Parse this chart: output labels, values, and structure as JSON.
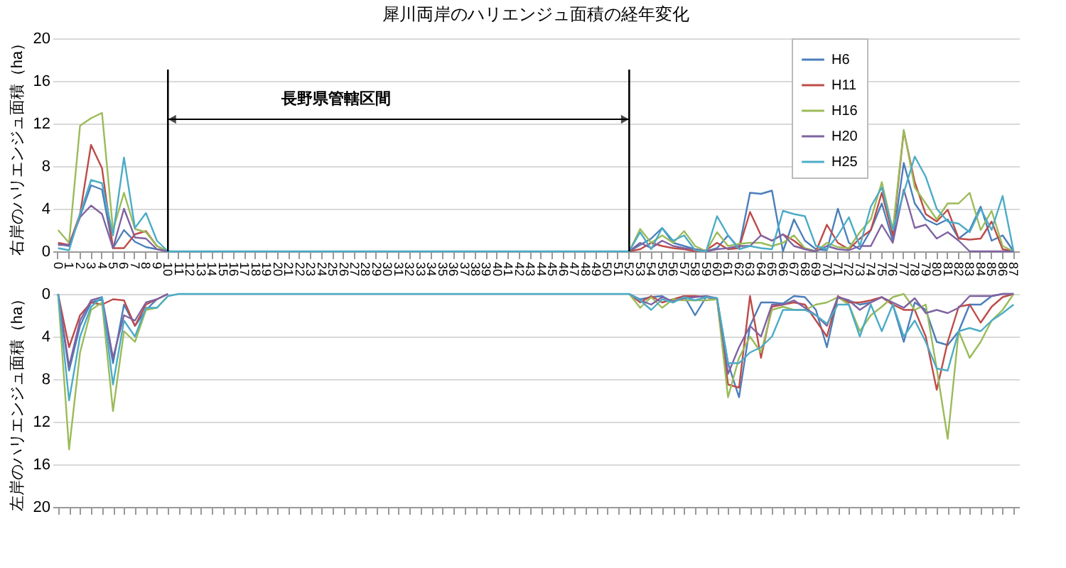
{
  "chart_data": [
    {
      "type": "line",
      "title": "犀川両岸のハリエンジュ面積の経年変化",
      "ylabel": "右岸のハリエンジュ面積（ha）",
      "categories": [
        "0",
        "1",
        "2",
        "3",
        "4",
        "5",
        "6",
        "7",
        "8",
        "9",
        "10",
        "11",
        "12",
        "13",
        "14",
        "15",
        "16",
        "17",
        "18",
        "19",
        "20",
        "21",
        "22",
        "23",
        "24",
        "25",
        "26",
        "27",
        "28",
        "29",
        "30",
        "31",
        "32",
        "33",
        "34",
        "35",
        "36",
        "37",
        "38",
        "39",
        "40",
        "41",
        "42",
        "43",
        "44",
        "45",
        "46",
        "47",
        "48",
        "49",
        "50",
        "51",
        "52",
        "53",
        "54",
        "55",
        "56",
        "57",
        "58",
        "59",
        "60",
        "61",
        "62",
        "63",
        "64",
        "65",
        "66",
        "67",
        "68",
        "69",
        "70",
        "71",
        "72",
        "73",
        "74",
        "75",
        "76",
        "77",
        "78",
        "79",
        "80",
        "81",
        "82",
        "83",
        "84",
        "85",
        "86",
        "87"
      ],
      "ylim": [
        0,
        20
      ],
      "yticks": [
        0,
        4,
        8,
        12,
        16,
        20
      ],
      "grid": "y",
      "legend": "top right",
      "ref_lines": [
        {
          "axis": "x",
          "value": "10"
        },
        {
          "axis": "x",
          "value": "52"
        }
      ],
      "annotations": [
        "長野県管轄区間"
      ],
      "series": [
        {
          "name": "H6",
          "color": "#4a7ebb",
          "values": [
            0.7,
            0.5,
            3.3,
            6.2,
            5.8,
            0.3,
            2.0,
            0.9,
            0.4,
            0.2,
            0,
            null,
            null,
            null,
            null,
            null,
            null,
            null,
            null,
            null,
            null,
            null,
            null,
            null,
            null,
            null,
            null,
            null,
            null,
            null,
            null,
            null,
            null,
            null,
            null,
            null,
            null,
            null,
            null,
            null,
            null,
            null,
            null,
            null,
            null,
            null,
            null,
            null,
            null,
            null,
            null,
            null,
            0,
            0.6,
            1.2,
            2.2,
            0.8,
            0.5,
            0.2,
            0,
            0.3,
            1.5,
            0.3,
            5.5,
            5.4,
            5.7,
            0,
            3.0,
            1.0,
            0.2,
            0.1,
            4.0,
            0.8,
            0.2,
            2.0,
            4.5,
            1.0,
            8.3,
            4.5,
            3.0,
            2.5,
            3.0,
            1.2,
            2.0,
            4.2,
            1.0,
            1.5,
            0
          ]
        },
        {
          "name": "H11",
          "color": "#be4b48",
          "values": [
            0.8,
            0.6,
            3.5,
            10.0,
            7.8,
            0.3,
            0.3,
            1.6,
            1.9,
            0.5,
            0,
            null,
            null,
            null,
            null,
            null,
            null,
            null,
            null,
            null,
            null,
            null,
            null,
            null,
            null,
            null,
            null,
            null,
            null,
            null,
            null,
            null,
            null,
            null,
            null,
            null,
            null,
            null,
            null,
            null,
            null,
            null,
            null,
            null,
            null,
            null,
            null,
            null,
            null,
            null,
            null,
            null,
            0,
            0.2,
            0.8,
            0.5,
            0.3,
            0.2,
            0,
            0.1,
            0.8,
            0.2,
            0.3,
            3.7,
            1.5,
            1.0,
            1.6,
            1.0,
            0.2,
            0,
            2.5,
            0.8,
            0.2,
            1.2,
            2.0,
            5.5,
            1.5,
            11.3,
            6.5,
            3.5,
            2.8,
            3.9,
            1.2,
            1.1,
            1.2,
            2.8,
            0.2,
            0
          ]
        },
        {
          "name": "H16",
          "color": "#9bbb59",
          "values": [
            2.0,
            0.8,
            11.8,
            12.5,
            13.0,
            2.0,
            5.5,
            2.1,
            1.8,
            0.5,
            0,
            null,
            null,
            null,
            null,
            null,
            null,
            null,
            null,
            null,
            null,
            null,
            null,
            null,
            null,
            null,
            null,
            null,
            null,
            null,
            null,
            null,
            null,
            null,
            null,
            null,
            null,
            null,
            null,
            null,
            null,
            null,
            null,
            null,
            null,
            null,
            null,
            null,
            null,
            null,
            null,
            null,
            0,
            2.1,
            0.8,
            1.5,
            0.8,
            1.9,
            0.5,
            0,
            1.8,
            0.5,
            0.7,
            0.8,
            0.8,
            0.5,
            0.8,
            1.5,
            0.3,
            0,
            0.8,
            0.4,
            0.3,
            1.8,
            3.0,
            6.5,
            2.0,
            11.4,
            6.0,
            4.5,
            3.0,
            4.5,
            4.5,
            5.5,
            2.0,
            3.8,
            0.5,
            0
          ]
        },
        {
          "name": "H20",
          "color": "#7f63a1",
          "values": [
            0.6,
            0.6,
            3.2,
            4.3,
            3.5,
            0.3,
            4.0,
            1.3,
            1.2,
            0.2,
            0,
            null,
            null,
            null,
            null,
            null,
            null,
            null,
            null,
            null,
            null,
            null,
            null,
            null,
            null,
            null,
            null,
            null,
            null,
            null,
            null,
            null,
            null,
            null,
            null,
            null,
            null,
            null,
            null,
            null,
            null,
            null,
            null,
            null,
            null,
            null,
            null,
            null,
            null,
            null,
            null,
            null,
            0,
            0.8,
            0.3,
            1.0,
            0.5,
            0.3,
            0.2,
            0,
            0.2,
            0.3,
            0.5,
            0.5,
            1.5,
            1.0,
            1.6,
            0.5,
            0.2,
            0,
            0.5,
            0.2,
            0.1,
            0.5,
            0.5,
            2.5,
            0.8,
            5.8,
            2.2,
            2.5,
            1.2,
            1.8,
            1.0,
            0,
            0,
            0,
            0,
            0
          ]
        },
        {
          "name": "H25",
          "color": "#4bacc6",
          "values": [
            0.3,
            0.1,
            3.5,
            6.7,
            6.4,
            1.5,
            8.8,
            2.2,
            3.6,
            1.0,
            0,
            0,
            0,
            0,
            0,
            0,
            0,
            0,
            0,
            0,
            0,
            0,
            0,
            0,
            0,
            0,
            0,
            0,
            0,
            0,
            0,
            0,
            0,
            0,
            0,
            0,
            0,
            0,
            0,
            0,
            0,
            0,
            0,
            0,
            0,
            0,
            0,
            0,
            0,
            0,
            0,
            0,
            0,
            1.8,
            0.2,
            2.2,
            1.0,
            1.5,
            0.1,
            0,
            3.3,
            1.5,
            0.2,
            0.5,
            0.3,
            0.2,
            3.8,
            3.5,
            3.3,
            0.5,
            0.2,
            1.5,
            3.2,
            0.5,
            4.2,
            6.0,
            2.0,
            5.5,
            8.9,
            7.0,
            4.0,
            2.8,
            2.6,
            1.8,
            4.0,
            2.0,
            5.2,
            0
          ]
        }
      ]
    },
    {
      "type": "line",
      "ylabel": "左岸のハリエンジュ面積（ha）",
      "categories": [
        "0",
        "1",
        "2",
        "3",
        "4",
        "5",
        "6",
        "7",
        "8",
        "9",
        "10",
        "11",
        "12",
        "13",
        "14",
        "15",
        "16",
        "17",
        "18",
        "19",
        "20",
        "21",
        "22",
        "23",
        "24",
        "25",
        "26",
        "27",
        "28",
        "29",
        "30",
        "31",
        "32",
        "33",
        "34",
        "35",
        "36",
        "37",
        "38",
        "39",
        "40",
        "41",
        "42",
        "43",
        "44",
        "45",
        "46",
        "47",
        "48",
        "49",
        "50",
        "51",
        "52",
        "53",
        "54",
        "55",
        "56",
        "57",
        "58",
        "59",
        "60",
        "61",
        "62",
        "63",
        "64",
        "65",
        "66",
        "67",
        "68",
        "69",
        "70",
        "71",
        "72",
        "73",
        "74",
        "75",
        "76",
        "77",
        "78",
        "79",
        "80",
        "81",
        "82",
        "83",
        "84",
        "85",
        "86",
        "87"
      ],
      "ylim": [
        20,
        0
      ],
      "yticks": [
        0,
        4,
        8,
        12,
        16,
        20
      ],
      "grid": "y",
      "tick_labels": "y",
      "series": [
        {
          "color": "#4a7ebb",
          "values": [
            0,
            7.2,
            3.0,
            0.8,
            0.5,
            6.5,
            1.0,
            3.0,
            1.5,
            0.5,
            0,
            null,
            null,
            null,
            null,
            null,
            null,
            null,
            null,
            null,
            null,
            null,
            null,
            null,
            null,
            null,
            null,
            null,
            null,
            null,
            null,
            null,
            null,
            null,
            null,
            null,
            null,
            null,
            null,
            null,
            null,
            null,
            null,
            null,
            null,
            null,
            null,
            null,
            null,
            null,
            null,
            null,
            0,
            0.5,
            0.3,
            0.2,
            0.8,
            0.2,
            2.0,
            0.3,
            0.5,
            6.5,
            9.7,
            3.0,
            0.8,
            0.8,
            0.9,
            0.2,
            0.3,
            1.5,
            5.0,
            0.3,
            0.6,
            1.0,
            0.8,
            0.3,
            1.0,
            4.5,
            0.8,
            1.5,
            4.5,
            4.8,
            3.5,
            1.0,
            1.0,
            0.2,
            0,
            0
          ]
        },
        {
          "color": "#be4b48",
          "values": [
            0,
            5.0,
            2.0,
            0.8,
            1.0,
            0.5,
            0.6,
            3.0,
            1.0,
            0.5,
            0,
            null,
            null,
            null,
            null,
            null,
            null,
            null,
            null,
            null,
            null,
            null,
            null,
            null,
            null,
            null,
            null,
            null,
            null,
            null,
            null,
            null,
            null,
            null,
            null,
            null,
            null,
            null,
            null,
            null,
            null,
            null,
            null,
            null,
            null,
            null,
            null,
            null,
            null,
            null,
            null,
            null,
            0,
            0.8,
            0.2,
            0.8,
            0.5,
            0.2,
            0.2,
            0.3,
            0.5,
            8.5,
            8.8,
            0.2,
            6.0,
            1.2,
            1.0,
            0.8,
            1.0,
            2.5,
            4.0,
            0.2,
            0.8,
            0.8,
            0.6,
            0.3,
            1.0,
            1.5,
            1.5,
            4.0,
            9.0,
            4.5,
            1.2,
            1.0,
            2.7,
            1.2,
            0.3,
            0
          ]
        },
        {
          "color": "#9bbb59",
          "values": [
            0,
            14.6,
            5.5,
            1.5,
            0.8,
            11.0,
            3.5,
            4.5,
            1.5,
            1.3,
            0.2,
            null,
            null,
            null,
            null,
            null,
            null,
            null,
            null,
            null,
            null,
            null,
            null,
            null,
            null,
            null,
            null,
            null,
            null,
            null,
            null,
            null,
            null,
            null,
            null,
            null,
            null,
            null,
            null,
            null,
            null,
            null,
            null,
            null,
            null,
            null,
            null,
            null,
            null,
            null,
            null,
            null,
            0,
            1.3,
            0.3,
            1.3,
            0.5,
            0.6,
            0.6,
            0.6,
            0.5,
            9.7,
            6.0,
            4.0,
            5.5,
            1.5,
            1.2,
            1.5,
            1.5,
            1.0,
            0.8,
            0.3,
            1.0,
            3.5,
            2.0,
            1.2,
            0.3,
            0,
            1.5,
            1.0,
            7.0,
            13.6,
            3.5,
            6.0,
            4.5,
            2.5,
            1.5,
            0
          ]
        },
        {
          "color": "#7f63a1",
          "values": [
            0,
            6.8,
            2.5,
            0.6,
            0.3,
            6.0,
            2.0,
            2.5,
            0.8,
            0.5,
            0,
            null,
            null,
            null,
            null,
            null,
            null,
            null,
            null,
            null,
            null,
            null,
            null,
            null,
            null,
            null,
            null,
            null,
            null,
            null,
            null,
            null,
            null,
            null,
            null,
            null,
            null,
            null,
            null,
            null,
            null,
            null,
            null,
            null,
            null,
            null,
            null,
            null,
            null,
            null,
            null,
            null,
            0,
            0.6,
            1.0,
            0.3,
            0.7,
            0.4,
            0.3,
            0.2,
            0.4,
            7.5,
            5.0,
            3.0,
            4.0,
            1.0,
            1.0,
            0.6,
            1.3,
            2.0,
            3.0,
            0.3,
            0.6,
            1.5,
            0.8,
            0.3,
            0.8,
            1.3,
            0.4,
            1.8,
            1.5,
            1.8,
            1.3,
            0.2,
            0.2,
            0.2,
            0,
            0
          ]
        },
        {
          "color": "#4bacc6",
          "values": [
            0,
            10.0,
            4.0,
            1.2,
            0.3,
            8.5,
            2.5,
            4.0,
            1.3,
            1.3,
            0.2,
            0,
            0,
            0,
            0,
            0,
            0,
            0,
            0,
            0,
            0,
            0,
            0,
            0,
            0,
            0,
            0,
            0,
            0,
            0,
            0,
            0,
            0,
            0,
            0,
            0,
            0,
            0,
            0,
            0,
            0,
            0,
            0,
            0,
            0,
            0,
            0,
            0,
            0,
            0,
            0,
            0,
            0,
            0.6,
            1.5,
            0.5,
            0.8,
            0.3,
            0.6,
            0.3,
            0.4,
            6.5,
            6.5,
            5.5,
            5.0,
            4.0,
            1.5,
            1.5,
            1.5,
            2.0,
            2.8,
            1.0,
            1.0,
            4.0,
            1.0,
            3.5,
            1.0,
            4.0,
            2.5,
            4.5,
            7.0,
            7.2,
            3.5,
            3.2,
            3.5,
            2.5,
            1.8,
            1.0
          ]
        }
      ]
    }
  ]
}
